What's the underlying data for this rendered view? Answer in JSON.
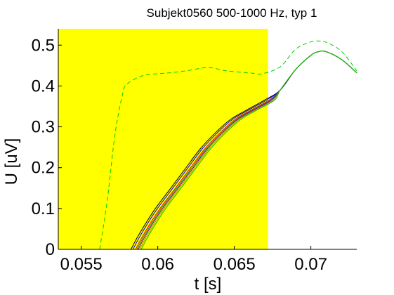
{
  "chart_data": {
    "type": "line",
    "title": "Subjekt0560 500-1000 Hz, typ 1",
    "xlabel": "t [s]",
    "ylabel": "U [uV]",
    "xlim": [
      0.0535,
      0.073
    ],
    "ylim": [
      0,
      0.54
    ],
    "grid": false,
    "x_ticks": [
      0.055,
      0.06,
      0.065,
      0.07
    ],
    "x_tick_labels": [
      "0.055",
      "0.06",
      "0.065",
      "0.07"
    ],
    "y_ticks": [
      0,
      0.1,
      0.2,
      0.3,
      0.4,
      0.5
    ],
    "y_tick_labels": [
      "0",
      "0.1",
      "0.2",
      "0.3",
      "0.4",
      "0.5"
    ],
    "highlight_region": {
      "x_start": 0.0535,
      "x_end": 0.0672,
      "color": "#ffff00"
    },
    "common_tail": {
      "x": [
        0.0672,
        0.068,
        0.069,
        0.07,
        0.0705,
        0.071,
        0.072,
        0.073
      ],
      "y": [
        0.365,
        0.39,
        0.44,
        0.475,
        0.484,
        0.484,
        0.465,
        0.432
      ]
    },
    "series": [
      {
        "color": "#000000",
        "style": "solid",
        "offset": 0.0,
        "shift": -0.00025,
        "x": [
          0.0585,
          0.059,
          0.06,
          0.061,
          0.062,
          0.063,
          0.064,
          0.065,
          0.066,
          0.0672
        ],
        "y": [
          0.0,
          0.035,
          0.095,
          0.145,
          0.195,
          0.245,
          0.285,
          0.318,
          0.34,
          0.365
        ]
      },
      {
        "color": "#0000ff",
        "style": "solid",
        "offset": 0.0,
        "shift": -0.00012,
        "x": [
          0.0585,
          0.059,
          0.06,
          0.061,
          0.062,
          0.063,
          0.064,
          0.065,
          0.066,
          0.0672
        ],
        "y": [
          0.0,
          0.035,
          0.095,
          0.145,
          0.195,
          0.245,
          0.285,
          0.318,
          0.34,
          0.365
        ]
      },
      {
        "color": "#ff0000",
        "style": "solid",
        "offset": 0.0,
        "shift": 5e-05,
        "x": [
          0.0585,
          0.059,
          0.06,
          0.061,
          0.062,
          0.063,
          0.064,
          0.065,
          0.066,
          0.0672
        ],
        "y": [
          0.0,
          0.035,
          0.095,
          0.145,
          0.195,
          0.245,
          0.285,
          0.318,
          0.34,
          0.365
        ]
      },
      {
        "color": "#008080",
        "style": "solid",
        "offset": 0.0,
        "shift": 0.00014,
        "x": [
          0.0585,
          0.059,
          0.06,
          0.061,
          0.062,
          0.063,
          0.064,
          0.065,
          0.066,
          0.0672
        ],
        "y": [
          0.0,
          0.035,
          0.095,
          0.145,
          0.195,
          0.245,
          0.285,
          0.318,
          0.34,
          0.365
        ]
      },
      {
        "color": "#800080",
        "style": "solid",
        "offset": 0.0,
        "shift": 0.00022,
        "x": [
          0.0585,
          0.059,
          0.06,
          0.061,
          0.062,
          0.063,
          0.064,
          0.065,
          0.066,
          0.0672
        ],
        "y": [
          0.0,
          0.035,
          0.095,
          0.145,
          0.195,
          0.245,
          0.285,
          0.318,
          0.34,
          0.365
        ]
      },
      {
        "color": "#a0a000",
        "style": "solid",
        "offset": 0.0,
        "shift": 0.00032,
        "x": [
          0.0585,
          0.059,
          0.06,
          0.061,
          0.062,
          0.063,
          0.064,
          0.065,
          0.066,
          0.0672
        ],
        "y": [
          0.0,
          0.035,
          0.095,
          0.145,
          0.195,
          0.245,
          0.285,
          0.318,
          0.34,
          0.365
        ]
      },
      {
        "color": "#00c000",
        "style": "solid",
        "offset": 0.0,
        "shift": 0.00042,
        "x": [
          0.0585,
          0.059,
          0.06,
          0.061,
          0.062,
          0.063,
          0.064,
          0.065,
          0.066,
          0.0672
        ],
        "y": [
          0.0,
          0.035,
          0.095,
          0.145,
          0.195,
          0.245,
          0.285,
          0.318,
          0.34,
          0.365
        ]
      },
      {
        "color": "#00cc00",
        "style": "dashed",
        "offset": null,
        "shift": 0,
        "x": [
          0.0562,
          0.0567,
          0.0572,
          0.0577,
          0.058,
          0.059,
          0.06,
          0.061,
          0.062,
          0.0633,
          0.0645,
          0.066,
          0.0668,
          0.068,
          0.069,
          0.07,
          0.0705,
          0.071,
          0.072,
          0.073
        ],
        "y": [
          0.0,
          0.12,
          0.28,
          0.38,
          0.405,
          0.425,
          0.43,
          0.433,
          0.438,
          0.445,
          0.437,
          0.432,
          0.43,
          0.447,
          0.49,
          0.508,
          0.51,
          0.507,
          0.485,
          0.437
        ]
      }
    ]
  }
}
